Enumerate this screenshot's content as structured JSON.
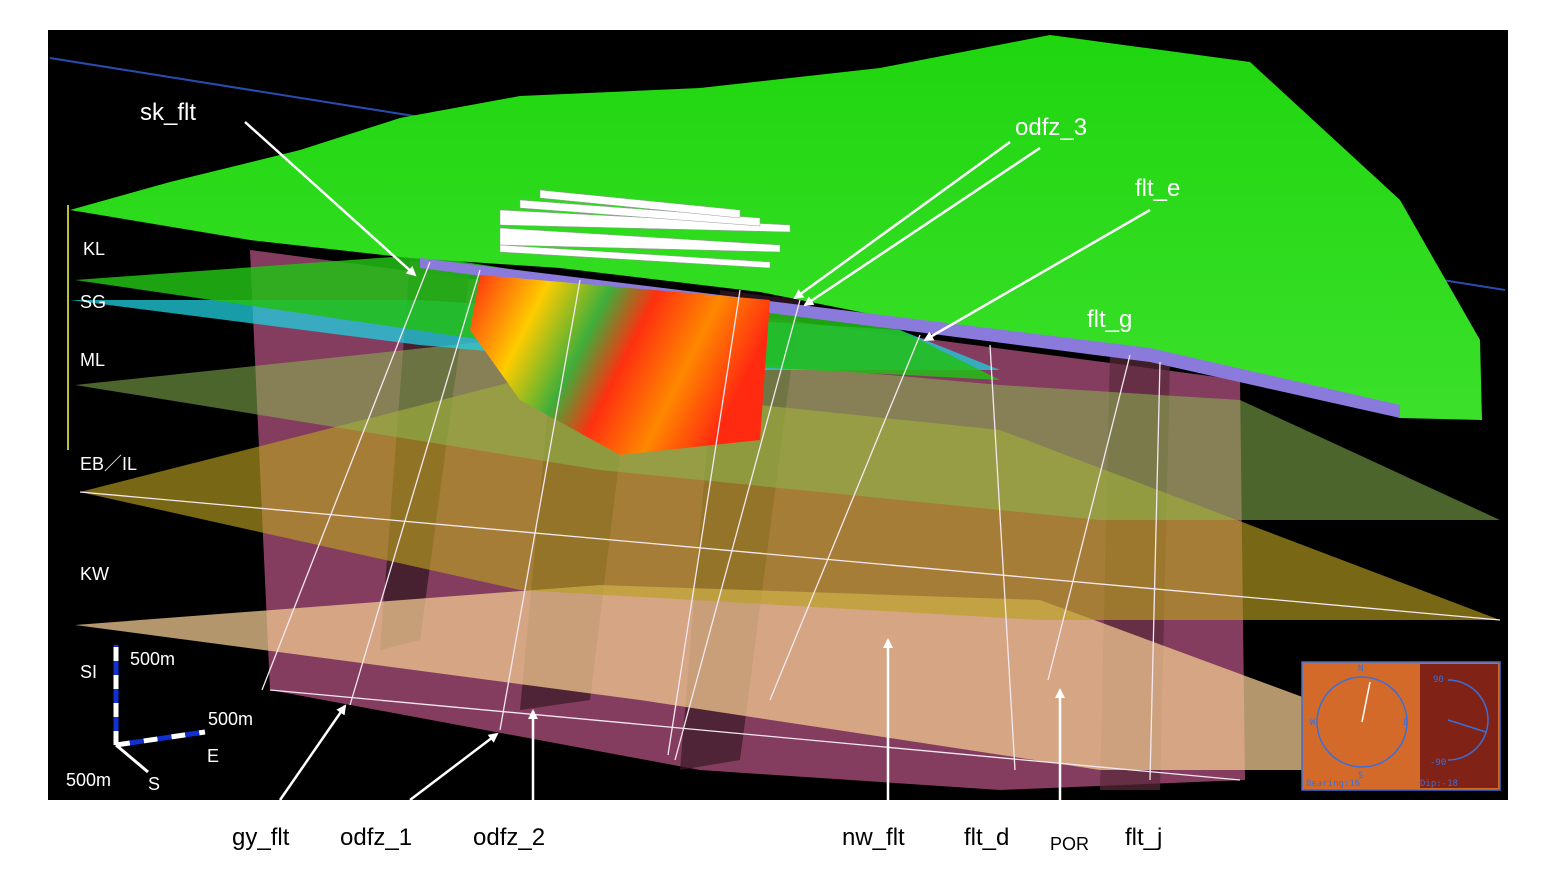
{
  "labels_top": [
    "sk_flt",
    "odfz_3",
    "flt_e",
    "flt_g"
  ],
  "layers": [
    "KL",
    "SG",
    "ML",
    "EB／IL",
    "KW"
  ],
  "scale_bar": {
    "vertical_axis": "SI",
    "vertical_length": "500m",
    "east_length": "500m",
    "east_axis": "E",
    "south_length": "500m",
    "south_axis": "S"
  },
  "labels_bottom": [
    "gy_flt",
    "odfz_1",
    "odfz_2",
    "nw_flt",
    "flt_d",
    "POR",
    "flt_j"
  ],
  "compass": {
    "north": "N",
    "west": "W",
    "east": "E",
    "south": "S",
    "dip_top": "90",
    "dip_bottom": "-90",
    "bearing": "Bearing:16",
    "dip": "Dip:-18"
  }
}
